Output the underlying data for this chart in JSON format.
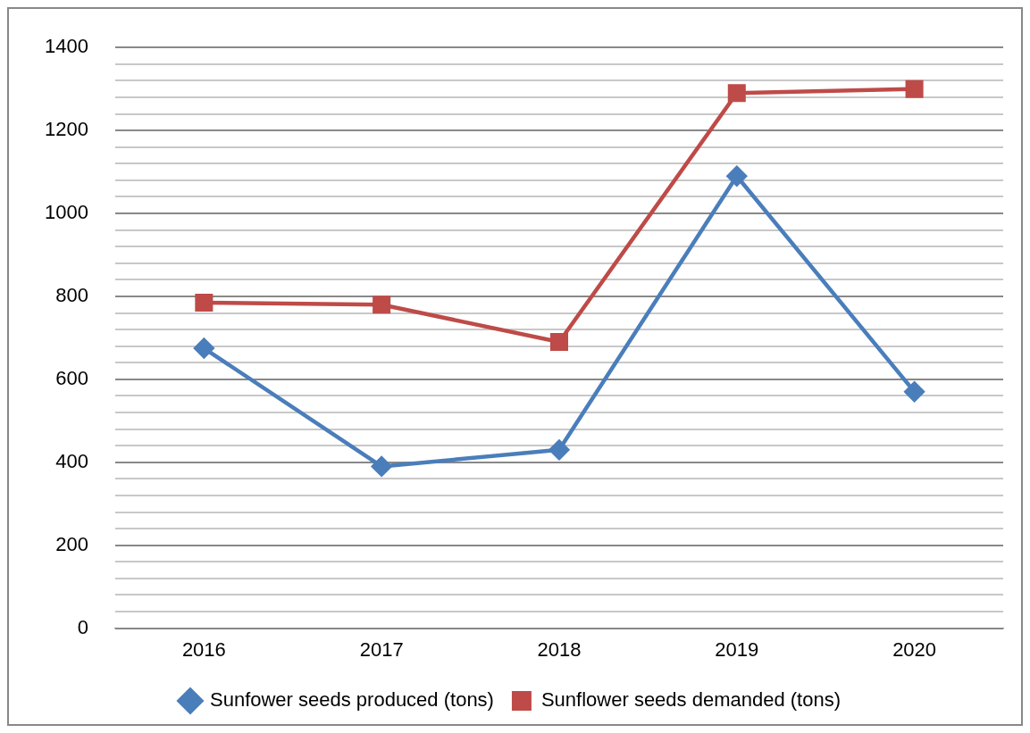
{
  "chart_data": {
    "type": "line",
    "categories": [
      "2016",
      "2017",
      "2018",
      "2019",
      "2020"
    ],
    "series": [
      {
        "name": "Sunfower seeds produced (tons)",
        "color": "#4a7ebb",
        "marker": "diamond",
        "values": [
          675,
          390,
          430,
          1090,
          570
        ]
      },
      {
        "name": "Sunflower seeds demanded (tons)",
        "color": "#be4b48",
        "marker": "square",
        "values": [
          785,
          780,
          690,
          1290,
          1300
        ]
      }
    ],
    "ylim": [
      0,
      1400
    ],
    "yticks": [
      0,
      {
        "value": 40,
        "label": null
      },
      {
        "value": 80,
        "label": null
      },
      {
        "value": 120,
        "label": null
      },
      {
        "value": 160,
        "label": null
      },
      200,
      {
        "value": 240,
        "label": null
      },
      {
        "value": 280,
        "label": null
      },
      {
        "value": 320,
        "label": null
      },
      {
        "value": 360,
        "label": null
      },
      400,
      {
        "value": 440,
        "label": null
      },
      {
        "value": 480,
        "label": null
      },
      {
        "value": 520,
        "label": null
      },
      {
        "value": 560,
        "label": null
      },
      600,
      {
        "value": 640,
        "label": null
      },
      {
        "value": 680,
        "label": null
      },
      {
        "value": 720,
        "label": null
      },
      {
        "value": 760,
        "label": null
      },
      800,
      {
        "value": 840,
        "label": null
      },
      {
        "value": 880,
        "label": null
      },
      {
        "value": 920,
        "label": null
      },
      {
        "value": 960,
        "label": null
      },
      1000,
      {
        "value": 1040,
        "label": null
      },
      {
        "value": 1080,
        "label": null
      },
      {
        "value": 1120,
        "label": null
      },
      {
        "value": 1160,
        "label": null
      },
      1200,
      {
        "value": 1240,
        "label": null
      },
      {
        "value": 1280,
        "label": null
      },
      {
        "value": 1320,
        "label": null
      },
      {
        "value": 1360,
        "label": null
      },
      1400
    ],
    "grid": "y",
    "legend": "bottom",
    "line_style": "solid"
  }
}
